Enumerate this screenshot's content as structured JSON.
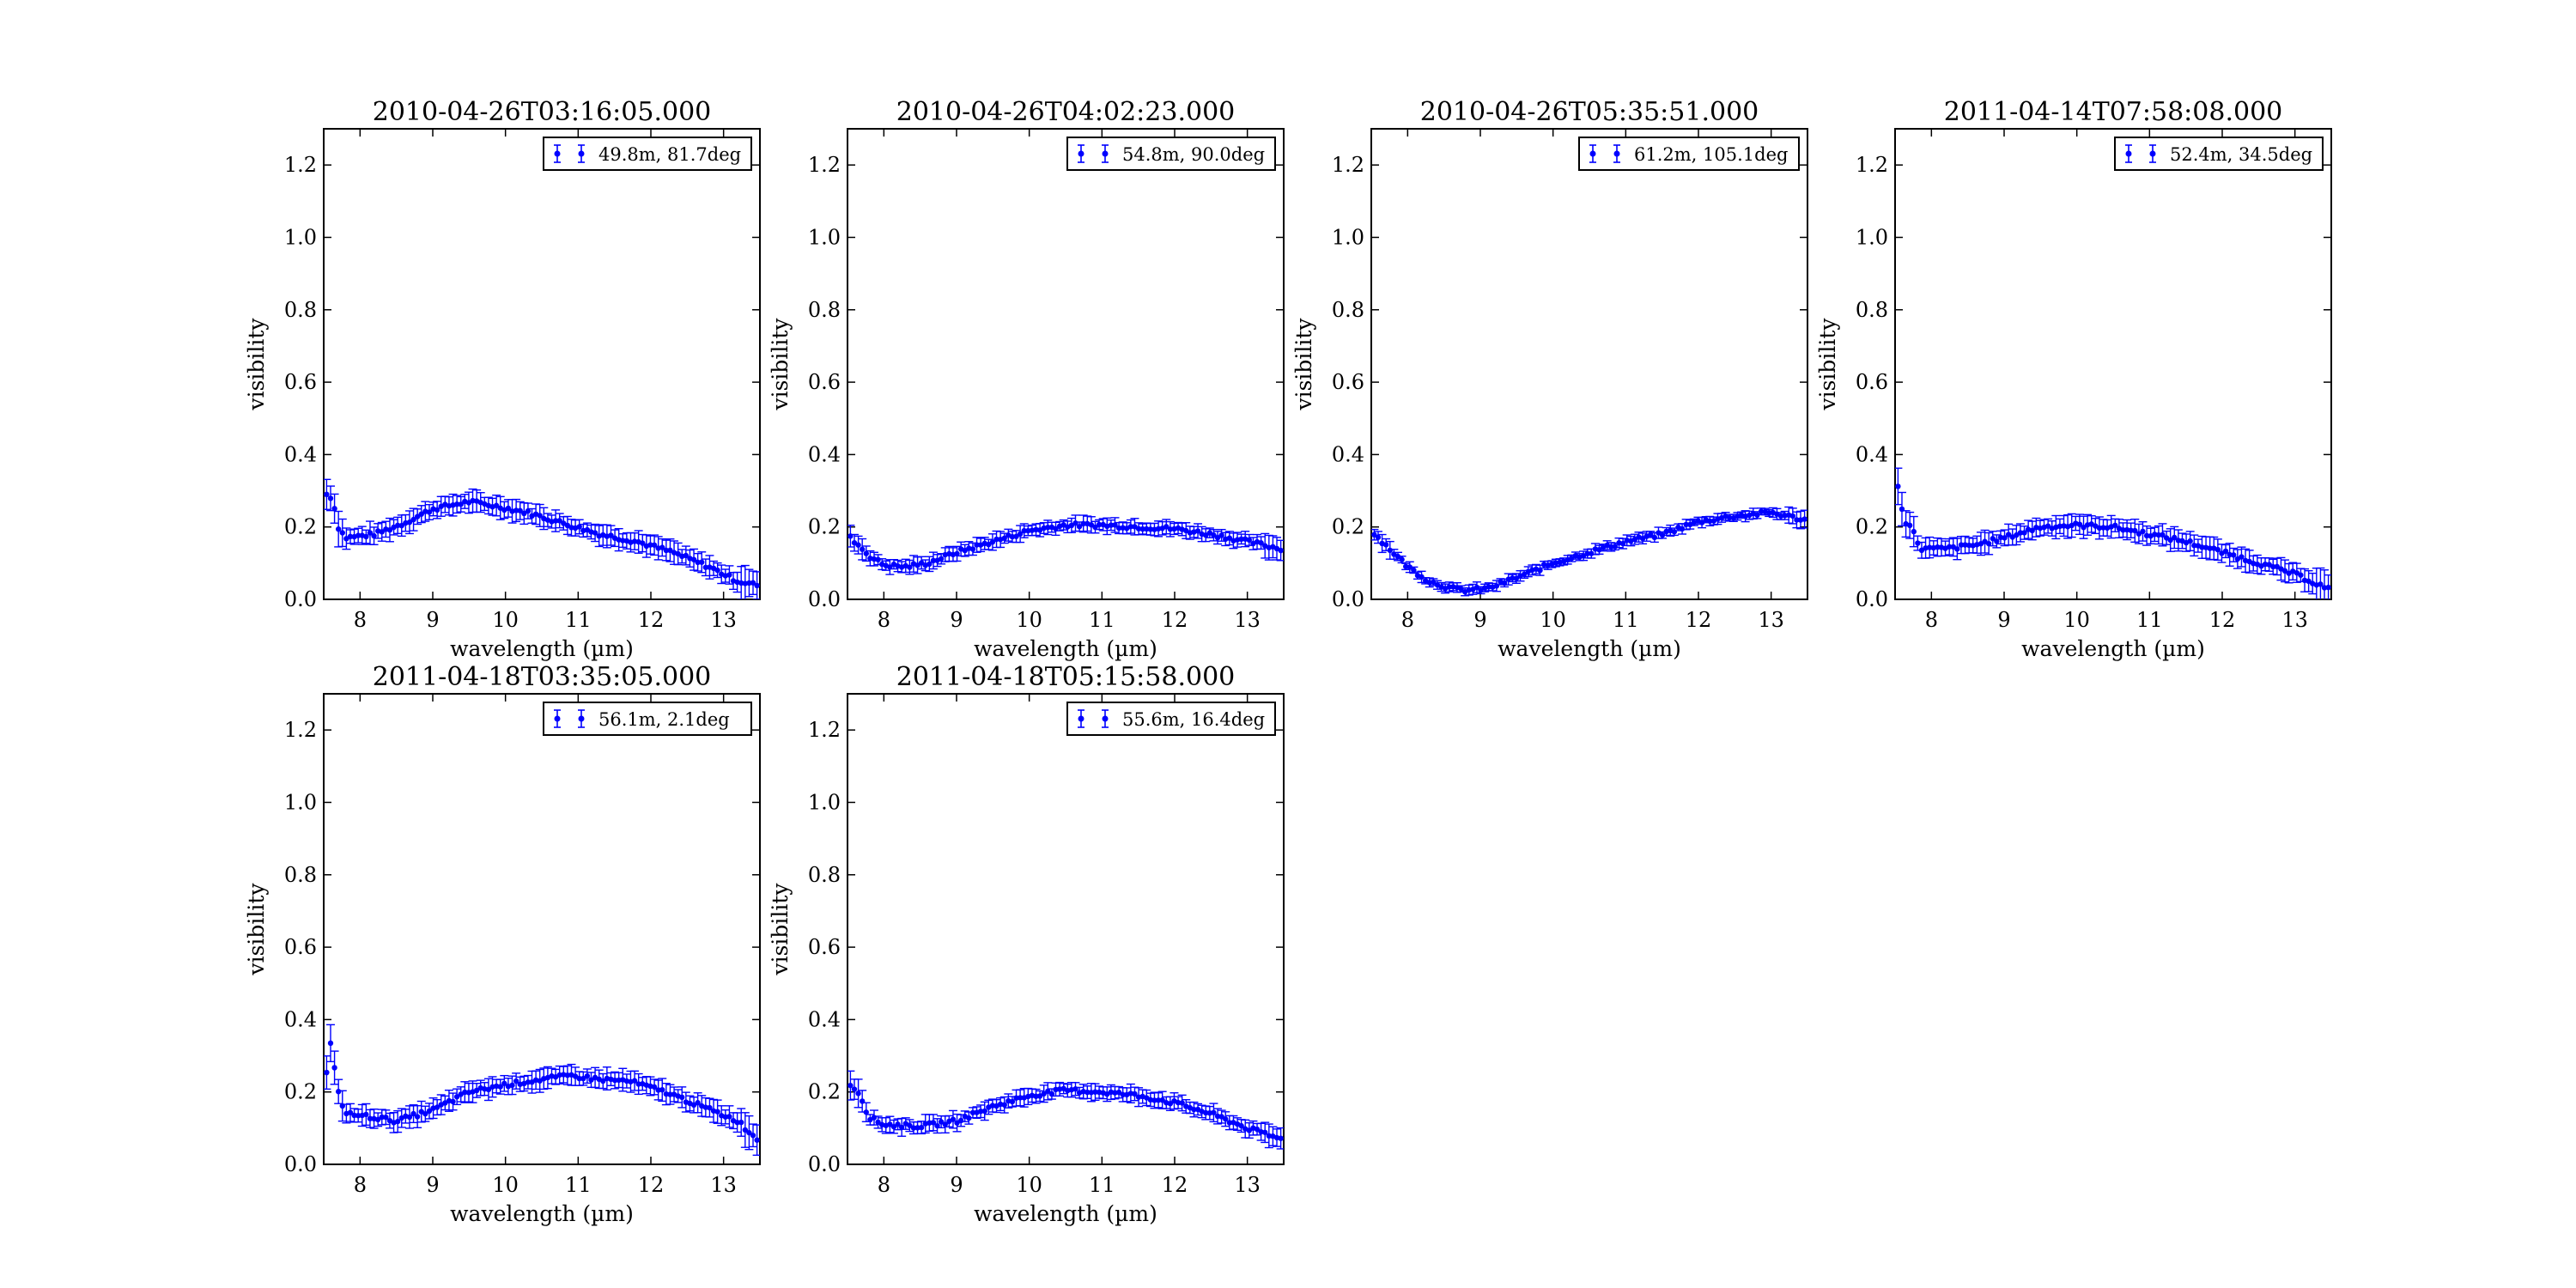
{
  "figure": {
    "background": "#ffffff"
  },
  "style": {
    "marker_color": "#0000ff",
    "axis_color": "#000000"
  },
  "chart_data": [
    {
      "type": "scatter",
      "error_bars": true,
      "title": "2010-04-26T03:16:05.000",
      "xlabel": "wavelength (µm)",
      "ylabel": "visibility",
      "xlim": [
        7.5,
        13.5
      ],
      "ylim": [
        0.0,
        1.3
      ],
      "xticks": [
        8,
        9,
        10,
        11,
        12,
        13
      ],
      "yticks": [
        0.0,
        0.2,
        0.4,
        0.6,
        0.8,
        1.0,
        1.2
      ],
      "legend": {
        "position": "top-right",
        "label": "49.8m, 81.7deg"
      },
      "anchors": [
        [
          7.55,
          0.29
        ],
        [
          7.62,
          0.28
        ],
        [
          7.7,
          0.2
        ],
        [
          7.8,
          0.17
        ],
        [
          8.2,
          0.18
        ],
        [
          8.6,
          0.21
        ],
        [
          9.0,
          0.25
        ],
        [
          9.5,
          0.27
        ],
        [
          9.8,
          0.26
        ],
        [
          10.3,
          0.24
        ],
        [
          10.8,
          0.21
        ],
        [
          11.3,
          0.18
        ],
        [
          11.8,
          0.16
        ],
        [
          12.3,
          0.13
        ],
        [
          12.8,
          0.09
        ],
        [
          13.2,
          0.05
        ],
        [
          13.45,
          0.04
        ]
      ],
      "yerr": 0.025
    },
    {
      "type": "scatter",
      "error_bars": true,
      "title": "2010-04-26T04:02:23.000",
      "xlabel": "wavelength (µm)",
      "ylabel": "visibility",
      "xlim": [
        7.5,
        13.5
      ],
      "ylim": [
        0.0,
        1.3
      ],
      "xticks": [
        8,
        9,
        10,
        11,
        12,
        13
      ],
      "yticks": [
        0.0,
        0.2,
        0.4,
        0.6,
        0.8,
        1.0,
        1.2
      ],
      "legend": {
        "position": "top-right",
        "label": "54.8m, 90.0deg"
      },
      "anchors": [
        [
          7.55,
          0.17
        ],
        [
          7.8,
          0.12
        ],
        [
          8.0,
          0.095
        ],
        [
          8.3,
          0.09
        ],
        [
          8.6,
          0.1
        ],
        [
          9.0,
          0.13
        ],
        [
          9.5,
          0.16
        ],
        [
          10.0,
          0.19
        ],
        [
          10.5,
          0.205
        ],
        [
          11.0,
          0.205
        ],
        [
          11.5,
          0.2
        ],
        [
          12.0,
          0.195
        ],
        [
          12.5,
          0.18
        ],
        [
          13.0,
          0.16
        ],
        [
          13.45,
          0.14
        ]
      ],
      "yerr": 0.018
    },
    {
      "type": "scatter",
      "error_bars": true,
      "title": "2010-04-26T05:35:51.000",
      "xlabel": "wavelength (µm)",
      "ylabel": "visibility",
      "xlim": [
        7.5,
        13.5
      ],
      "ylim": [
        0.0,
        1.3
      ],
      "xticks": [
        8,
        9,
        10,
        11,
        12,
        13
      ],
      "yticks": [
        0.0,
        0.2,
        0.4,
        0.6,
        0.8,
        1.0,
        1.2
      ],
      "legend": {
        "position": "top-right",
        "label": "61.2m, 105.1deg"
      },
      "anchors": [
        [
          7.55,
          0.18
        ],
        [
          7.8,
          0.13
        ],
        [
          8.0,
          0.09
        ],
        [
          8.3,
          0.05
        ],
        [
          8.6,
          0.03
        ],
        [
          8.8,
          0.025
        ],
        [
          9.1,
          0.03
        ],
        [
          9.5,
          0.06
        ],
        [
          10.0,
          0.1
        ],
        [
          10.5,
          0.13
        ],
        [
          11.0,
          0.16
        ],
        [
          11.5,
          0.18
        ],
        [
          12.0,
          0.215
        ],
        [
          12.5,
          0.23
        ],
        [
          13.0,
          0.24
        ],
        [
          13.45,
          0.22
        ]
      ],
      "yerr": 0.012
    },
    {
      "type": "scatter",
      "error_bars": true,
      "title": "2011-04-14T07:58:08.000",
      "xlabel": "wavelength (µm)",
      "ylabel": "visibility",
      "xlim": [
        7.5,
        13.5
      ],
      "ylim": [
        0.0,
        1.3
      ],
      "xticks": [
        8,
        9,
        10,
        11,
        12,
        13
      ],
      "yticks": [
        0.0,
        0.2,
        0.4,
        0.6,
        0.8,
        1.0,
        1.2
      ],
      "legend": {
        "position": "top-right",
        "label": "52.4m, 34.5deg"
      },
      "anchors": [
        [
          7.55,
          0.31
        ],
        [
          7.62,
          0.22
        ],
        [
          7.72,
          0.2
        ],
        [
          7.85,
          0.14
        ],
        [
          8.2,
          0.14
        ],
        [
          8.6,
          0.15
        ],
        [
          9.0,
          0.17
        ],
        [
          9.5,
          0.2
        ],
        [
          10.0,
          0.205
        ],
        [
          10.5,
          0.2
        ],
        [
          11.0,
          0.18
        ],
        [
          11.5,
          0.16
        ],
        [
          12.0,
          0.13
        ],
        [
          12.5,
          0.1
        ],
        [
          13.0,
          0.07
        ],
        [
          13.45,
          0.03
        ]
      ],
      "yerr": 0.025
    },
    {
      "type": "scatter",
      "error_bars": true,
      "title": "2011-04-18T03:35:05.000",
      "xlabel": "wavelength (µm)",
      "ylabel": "visibility",
      "xlim": [
        7.5,
        13.5
      ],
      "ylim": [
        0.0,
        1.3
      ],
      "xticks": [
        8,
        9,
        10,
        11,
        12,
        13
      ],
      "yticks": [
        0.0,
        0.2,
        0.4,
        0.6,
        0.8,
        1.0,
        1.2
      ],
      "legend": {
        "position": "top-right",
        "label": "56.1m, 2.1deg"
      },
      "anchors": [
        [
          7.55,
          0.25
        ],
        [
          7.6,
          0.34
        ],
        [
          7.7,
          0.2
        ],
        [
          7.8,
          0.14
        ],
        [
          8.2,
          0.13
        ],
        [
          8.5,
          0.12
        ],
        [
          9.0,
          0.15
        ],
        [
          9.5,
          0.2
        ],
        [
          10.0,
          0.22
        ],
        [
          10.5,
          0.235
        ],
        [
          10.9,
          0.245
        ],
        [
          11.3,
          0.235
        ],
        [
          11.7,
          0.23
        ],
        [
          12.2,
          0.2
        ],
        [
          12.7,
          0.16
        ],
        [
          13.2,
          0.12
        ],
        [
          13.45,
          0.07
        ]
      ],
      "yerr": 0.025
    },
    {
      "type": "scatter",
      "error_bars": true,
      "title": "2011-04-18T05:15:58.000",
      "xlabel": "wavelength (µm)",
      "ylabel": "visibility",
      "xlim": [
        7.5,
        13.5
      ],
      "ylim": [
        0.0,
        1.3
      ],
      "xticks": [
        8,
        9,
        10,
        11,
        12,
        13
      ],
      "yticks": [
        0.0,
        0.2,
        0.4,
        0.6,
        0.8,
        1.0,
        1.2
      ],
      "legend": {
        "position": "top-right",
        "label": "55.6m, 16.4deg"
      },
      "anchors": [
        [
          7.55,
          0.22
        ],
        [
          7.65,
          0.2
        ],
        [
          7.8,
          0.13
        ],
        [
          8.0,
          0.11
        ],
        [
          8.5,
          0.105
        ],
        [
          9.0,
          0.12
        ],
        [
          9.5,
          0.16
        ],
        [
          10.0,
          0.19
        ],
        [
          10.5,
          0.205
        ],
        [
          11.0,
          0.2
        ],
        [
          11.5,
          0.19
        ],
        [
          12.0,
          0.17
        ],
        [
          12.5,
          0.14
        ],
        [
          13.0,
          0.1
        ],
        [
          13.45,
          0.07
        ]
      ],
      "yerr": 0.02
    }
  ]
}
